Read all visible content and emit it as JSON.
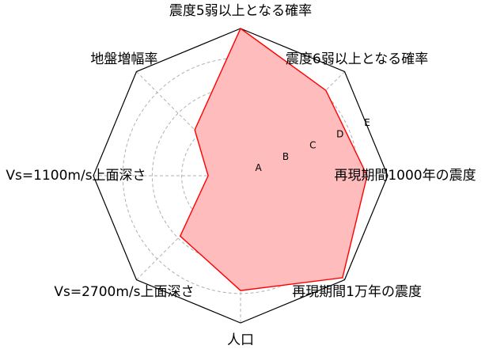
{
  "chart_data": {
    "type": "radar",
    "axes": [
      "震度5弱以上となる確率",
      "震度6弱以上となる確率",
      "再現期間1000年の震度",
      "再現期間1万年の震度",
      "人口",
      "Vs=2700m/s上面深さ",
      "Vs=1100m/s上面深さ",
      "地盤増幅率"
    ],
    "ring_labels": [
      "A",
      "B",
      "C",
      "D",
      "E"
    ],
    "rmax": 5,
    "values": [
      5,
      4.1,
      4.3,
      4.9,
      3.9,
      2.9,
      1.1,
      2.2
    ],
    "grid": true,
    "colors": {
      "fill": "#ffbcbc",
      "line": "#ff0000",
      "outline": "#000000",
      "grid": "#b0b0b0"
    }
  }
}
